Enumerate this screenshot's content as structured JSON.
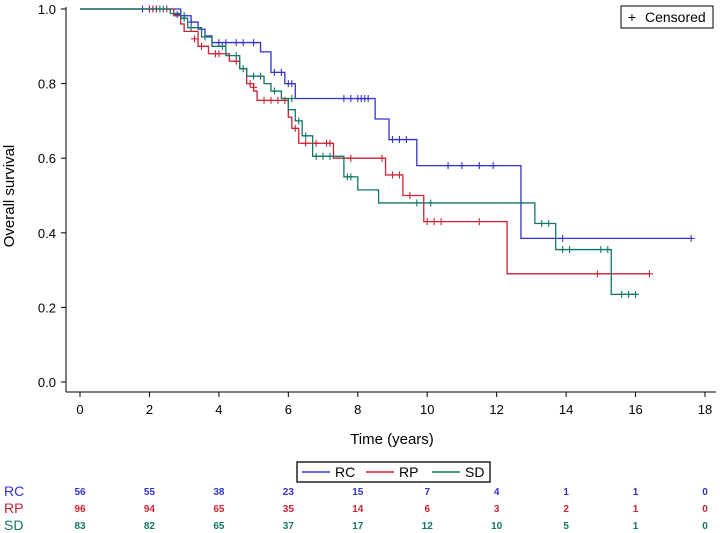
{
  "chart_data": {
    "type": "line",
    "subtype": "kaplan-meier",
    "xlabel": "Time (years)",
    "ylabel": "Overall survival",
    "xlim": [
      -0.4,
      18.4
    ],
    "ylim": [
      0,
      1.0
    ],
    "xticks": [
      0,
      2,
      4,
      6,
      8,
      10,
      12,
      14,
      16,
      18
    ],
    "yticks": [
      0.0,
      0.2,
      0.4,
      0.6,
      0.8,
      1.0
    ],
    "ytick_labels": [
      "0.0",
      "0.2",
      "0.4",
      "0.6",
      "0.8",
      "1.0"
    ],
    "grid": false,
    "censor_legend": {
      "symbol": "+",
      "label": "Censored"
    },
    "series": [
      {
        "name": "RC",
        "color": "#3333cc",
        "steps": [
          [
            0,
            1.0
          ],
          [
            2.9,
            0.982
          ],
          [
            3.2,
            0.965
          ],
          [
            3.4,
            0.946
          ],
          [
            3.6,
            0.928
          ],
          [
            3.8,
            0.91
          ],
          [
            5.2,
            0.885
          ],
          [
            5.5,
            0.83
          ],
          [
            5.9,
            0.8
          ],
          [
            6.2,
            0.76
          ],
          [
            8.5,
            0.705
          ],
          [
            8.9,
            0.65
          ],
          [
            9.7,
            0.58
          ],
          [
            12.7,
            0.385
          ],
          [
            17.6,
            0.385
          ]
        ],
        "censored": [
          [
            1.8,
            1.0
          ],
          [
            2.0,
            1.0
          ],
          [
            2.1,
            1.0
          ],
          [
            2.2,
            1.0
          ],
          [
            2.8,
            0.985
          ],
          [
            3.0,
            0.982
          ],
          [
            3.2,
            0.965
          ],
          [
            4.0,
            0.91
          ],
          [
            4.2,
            0.91
          ],
          [
            4.5,
            0.91
          ],
          [
            4.7,
            0.91
          ],
          [
            5.0,
            0.91
          ],
          [
            5.6,
            0.83
          ],
          [
            5.8,
            0.83
          ],
          [
            6.0,
            0.8
          ],
          [
            6.1,
            0.8
          ],
          [
            7.6,
            0.76
          ],
          [
            7.8,
            0.76
          ],
          [
            8.0,
            0.76
          ],
          [
            8.1,
            0.76
          ],
          [
            8.2,
            0.76
          ],
          [
            8.3,
            0.76
          ],
          [
            9.0,
            0.65
          ],
          [
            9.2,
            0.65
          ],
          [
            9.4,
            0.65
          ],
          [
            10.6,
            0.58
          ],
          [
            11.0,
            0.58
          ],
          [
            11.5,
            0.58
          ],
          [
            11.9,
            0.58
          ],
          [
            13.9,
            0.385
          ],
          [
            17.6,
            0.385
          ]
        ]
      },
      {
        "name": "RP",
        "color": "#cc2233",
        "steps": [
          [
            0,
            1.0
          ],
          [
            2.7,
            0.982
          ],
          [
            2.9,
            0.96
          ],
          [
            3.0,
            0.94
          ],
          [
            3.4,
            0.9
          ],
          [
            3.7,
            0.88
          ],
          [
            4.3,
            0.86
          ],
          [
            4.6,
            0.84
          ],
          [
            4.8,
            0.8
          ],
          [
            5.0,
            0.78
          ],
          [
            5.1,
            0.755
          ],
          [
            6.0,
            0.71
          ],
          [
            6.1,
            0.68
          ],
          [
            6.3,
            0.64
          ],
          [
            7.3,
            0.6
          ],
          [
            8.8,
            0.555
          ],
          [
            9.3,
            0.5
          ],
          [
            9.9,
            0.43
          ],
          [
            12.3,
            0.29
          ],
          [
            16.4,
            0.29
          ]
        ],
        "censored": [
          [
            2.0,
            1.0
          ],
          [
            2.1,
            1.0
          ],
          [
            2.2,
            1.0
          ],
          [
            2.5,
            1.0
          ],
          [
            3.3,
            0.92
          ],
          [
            3.5,
            0.9
          ],
          [
            3.9,
            0.88
          ],
          [
            4.0,
            0.88
          ],
          [
            4.5,
            0.86
          ],
          [
            4.9,
            0.8
          ],
          [
            5.0,
            0.79
          ],
          [
            5.3,
            0.755
          ],
          [
            5.5,
            0.755
          ],
          [
            5.7,
            0.755
          ],
          [
            5.9,
            0.755
          ],
          [
            6.2,
            0.68
          ],
          [
            6.5,
            0.64
          ],
          [
            6.8,
            0.64
          ],
          [
            7.1,
            0.64
          ],
          [
            7.2,
            0.64
          ],
          [
            7.8,
            0.6
          ],
          [
            8.7,
            0.6
          ],
          [
            9.0,
            0.555
          ],
          [
            9.2,
            0.555
          ],
          [
            9.5,
            0.5
          ],
          [
            10.0,
            0.43
          ],
          [
            10.2,
            0.43
          ],
          [
            10.4,
            0.43
          ],
          [
            11.5,
            0.43
          ],
          [
            14.9,
            0.29
          ],
          [
            16.4,
            0.29
          ]
        ]
      },
      {
        "name": "SD",
        "color": "#117766",
        "steps": [
          [
            0,
            1.0
          ],
          [
            2.6,
            0.988
          ],
          [
            2.9,
            0.975
          ],
          [
            3.1,
            0.95
          ],
          [
            3.5,
            0.925
          ],
          [
            3.8,
            0.9
          ],
          [
            4.2,
            0.875
          ],
          [
            4.6,
            0.84
          ],
          [
            4.8,
            0.82
          ],
          [
            5.3,
            0.8
          ],
          [
            5.5,
            0.78
          ],
          [
            5.8,
            0.76
          ],
          [
            6.0,
            0.73
          ],
          [
            6.2,
            0.7
          ],
          [
            6.4,
            0.66
          ],
          [
            6.7,
            0.605
          ],
          [
            7.6,
            0.55
          ],
          [
            8.0,
            0.515
          ],
          [
            8.6,
            0.48
          ],
          [
            13.1,
            0.425
          ],
          [
            13.7,
            0.355
          ],
          [
            15.3,
            0.235
          ],
          [
            16.0,
            0.235
          ]
        ],
        "censored": [
          [
            2.3,
            1.0
          ],
          [
            2.4,
            1.0
          ],
          [
            3.0,
            0.975
          ],
          [
            3.2,
            0.95
          ],
          [
            3.6,
            0.925
          ],
          [
            4.1,
            0.9
          ],
          [
            4.5,
            0.875
          ],
          [
            4.7,
            0.84
          ],
          [
            5.0,
            0.82
          ],
          [
            5.2,
            0.82
          ],
          [
            5.6,
            0.78
          ],
          [
            6.1,
            0.76
          ],
          [
            6.3,
            0.7
          ],
          [
            6.5,
            0.66
          ],
          [
            6.8,
            0.605
          ],
          [
            7.0,
            0.605
          ],
          [
            7.2,
            0.605
          ],
          [
            7.7,
            0.55
          ],
          [
            7.8,
            0.55
          ],
          [
            9.7,
            0.48
          ],
          [
            10.1,
            0.48
          ],
          [
            13.3,
            0.425
          ],
          [
            13.5,
            0.425
          ],
          [
            13.9,
            0.355
          ],
          [
            14.1,
            0.355
          ],
          [
            15.0,
            0.355
          ],
          [
            15.2,
            0.355
          ],
          [
            15.6,
            0.235
          ],
          [
            15.8,
            0.235
          ],
          [
            16.0,
            0.235
          ]
        ]
      }
    ]
  },
  "legend": {
    "items": [
      {
        "name": "RC",
        "color": "#3333cc"
      },
      {
        "name": "RP",
        "color": "#cc2233"
      },
      {
        "name": "SD",
        "color": "#117766"
      }
    ]
  },
  "risk_table": {
    "times": [
      0,
      2,
      4,
      6,
      8,
      10,
      12,
      14,
      16,
      18
    ],
    "rows": [
      {
        "label": "RC",
        "color": "#3333cc",
        "values": [
          "56",
          "55",
          "38",
          "23",
          "15",
          "7",
          "4",
          "1",
          "1",
          "0"
        ]
      },
      {
        "label": "RP",
        "color": "#cc2233",
        "values": [
          "96",
          "94",
          "65",
          "35",
          "14",
          "6",
          "3",
          "2",
          "1",
          "0"
        ]
      },
      {
        "label": "SD",
        "color": "#117766",
        "values": [
          "83",
          "82",
          "65",
          "37",
          "17",
          "12",
          "10",
          "5",
          "1",
          "0"
        ]
      }
    ]
  }
}
